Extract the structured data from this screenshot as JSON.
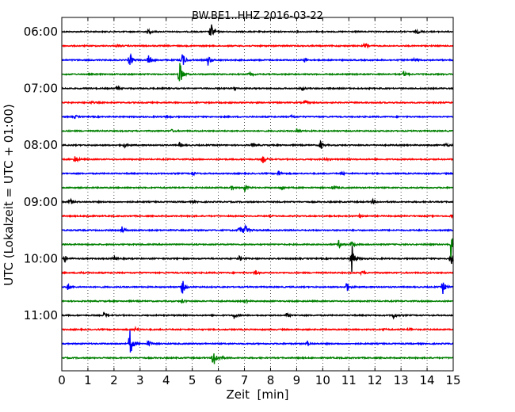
{
  "chart_data": {
    "type": "line",
    "title": "BW.BE1..HHZ 2016-03-22",
    "xlabel": "Zeit  [min]",
    "ylabel": "UTC (Lokalzeit = UTC + 01:00)",
    "xlim": [
      0,
      15
    ],
    "x_ticks": [
      "0",
      "1",
      "2",
      "3",
      "4",
      "5",
      "6",
      "7",
      "8",
      "9",
      "10",
      "11",
      "12",
      "13",
      "14",
      "15"
    ],
    "y_ticks": [
      {
        "label": "06:00",
        "trace": 0
      },
      {
        "label": "07:00",
        "trace": 4
      },
      {
        "label": "08:00",
        "trace": 8
      },
      {
        "label": "09:00",
        "trace": 12
      },
      {
        "label": "10:00",
        "trace": 16
      },
      {
        "label": "11:00",
        "trace": 20
      }
    ],
    "trace_interval_min": 15,
    "colors": [
      "#000000",
      "#ff0000",
      "#0000ff",
      "#008000"
    ],
    "grid": "vertical dotted",
    "series": [
      {
        "start": "06:00",
        "events": [
          [
            5.7,
            14
          ],
          [
            3.3,
            4
          ],
          [
            13.6,
            3
          ]
        ]
      },
      {
        "start": "06:15",
        "events": [
          [
            11.6,
            5
          ],
          [
            2.1,
            2
          ]
        ]
      },
      {
        "start": "06:30",
        "events": [
          [
            2.6,
            10
          ],
          [
            3.3,
            8
          ],
          [
            4.6,
            12
          ],
          [
            5.6,
            7
          ],
          [
            9.3,
            3
          ],
          [
            13.5,
            3
          ]
        ]
      },
      {
        "start": "06:45",
        "events": [
          [
            4.5,
            22
          ],
          [
            7.2,
            3
          ],
          [
            13.1,
            4
          ]
        ]
      },
      {
        "start": "07:00",
        "events": [
          [
            2.1,
            3
          ],
          [
            9.2,
            3
          ],
          [
            6.6,
            2
          ]
        ]
      },
      {
        "start": "07:15",
        "events": [
          [
            1.1,
            2
          ],
          [
            9.3,
            3
          ]
        ]
      },
      {
        "start": "07:30",
        "events": [
          [
            0.5,
            2
          ],
          [
            4.0,
            2
          ],
          [
            8.8,
            2
          ]
        ]
      },
      {
        "start": "07:45",
        "events": [
          [
            4.2,
            2
          ],
          [
            9.0,
            3
          ]
        ]
      },
      {
        "start": "08:00",
        "events": [
          [
            2.4,
            3
          ],
          [
            4.5,
            3
          ],
          [
            7.3,
            3
          ],
          [
            9.9,
            7
          ],
          [
            14.7,
            3
          ]
        ]
      },
      {
        "start": "08:15",
        "events": [
          [
            0.5,
            6
          ],
          [
            7.7,
            6
          ],
          [
            10.1,
            2
          ]
        ]
      },
      {
        "start": "08:30",
        "events": [
          [
            5.0,
            3
          ],
          [
            8.3,
            4
          ],
          [
            10.7,
            2
          ]
        ]
      },
      {
        "start": "08:45",
        "events": [
          [
            7.0,
            6
          ],
          [
            6.5,
            3
          ],
          [
            8.4,
            3
          ],
          [
            10.4,
            4
          ]
        ]
      },
      {
        "start": "09:00",
        "events": [
          [
            0.3,
            5
          ],
          [
            5.0,
            2
          ],
          [
            11.9,
            3
          ]
        ]
      },
      {
        "start": "09:15",
        "events": [
          [
            1.0,
            2
          ],
          [
            11.4,
            2
          ],
          [
            14.9,
            2
          ]
        ]
      },
      {
        "start": "09:30",
        "events": [
          [
            2.3,
            5
          ],
          [
            6.8,
            6
          ],
          [
            7.0,
            10
          ]
        ]
      },
      {
        "start": "09:45",
        "events": [
          [
            10.6,
            6
          ],
          [
            11.1,
            5
          ],
          [
            14.9,
            22
          ]
        ]
      },
      {
        "start": "10:00",
        "events": [
          [
            0.1,
            5
          ],
          [
            2.0,
            3
          ],
          [
            6.8,
            3
          ],
          [
            11.1,
            22
          ],
          [
            14.9,
            10
          ]
        ]
      },
      {
        "start": "10:15",
        "events": [
          [
            0.7,
            3
          ],
          [
            7.4,
            3
          ],
          [
            11.5,
            3
          ]
        ]
      },
      {
        "start": "10:30",
        "events": [
          [
            0.2,
            5
          ],
          [
            4.6,
            12
          ],
          [
            10.9,
            8
          ],
          [
            14.6,
            9
          ]
        ]
      },
      {
        "start": "10:45",
        "events": [
          [
            4.6,
            3
          ],
          [
            7.0,
            3
          ]
        ]
      },
      {
        "start": "11:00",
        "events": [
          [
            1.6,
            4
          ],
          [
            6.6,
            4
          ],
          [
            8.6,
            3
          ],
          [
            12.7,
            5
          ]
        ]
      },
      {
        "start": "11:15",
        "events": [
          [
            2.8,
            3
          ],
          [
            12.3,
            2
          ],
          [
            13.3,
            2
          ]
        ]
      },
      {
        "start": "11:30",
        "events": [
          [
            2.6,
            22
          ],
          [
            3.3,
            5
          ],
          [
            9.4,
            4
          ]
        ]
      },
      {
        "start": "11:45",
        "events": [
          [
            5.8,
            18
          ],
          [
            6.1,
            3
          ]
        ]
      }
    ]
  }
}
